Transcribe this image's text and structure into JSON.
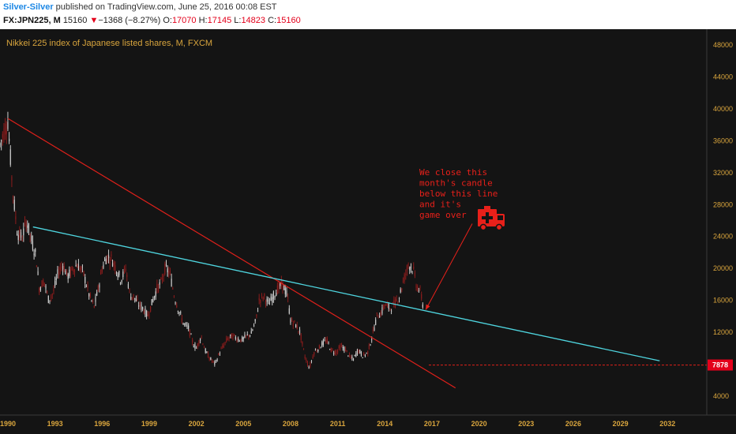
{
  "header": {
    "author": "Silver-Silver",
    "published": " published on TradingView.com, June 25, 2016 00:08 EST",
    "symbol": "FX:JPN225, M",
    "last": "15160",
    "change": "−1368 (−8.27%)",
    "o_label": "O:",
    "o_value": "17070",
    "h_label": "H:",
    "h_value": "17145",
    "l_label": "L:",
    "l_value": "14823",
    "c_label": "C:",
    "c_value": "15160",
    "down_arrow": "▼"
  },
  "colors": {
    "background": "#141414",
    "up": "#cfcfcf",
    "down": "#8a1c1c",
    "red_trendline": "#e0201a",
    "cyan_trendline": "#4fd6e0",
    "axis_text": "#d9a53d",
    "annotation": "#e8201a"
  },
  "chart_data": {
    "type": "candlestick",
    "title": "Nikkei 225 index of Japanese listed shares, M, FXCM",
    "x_ticks": [
      "1990",
      "1993",
      "1996",
      "1999",
      "2002",
      "2005",
      "2008",
      "2011",
      "2014",
      "2017",
      "2020",
      "2023",
      "2026",
      "2029",
      "2032"
    ],
    "y_ticks": [
      4000,
      8000,
      12000,
      16000,
      20000,
      24000,
      28000,
      32000,
      36000,
      40000,
      44000,
      48000
    ],
    "xlim": [
      1989.5,
      2034.5
    ],
    "ylim": [
      1600,
      50000
    ],
    "grid": false,
    "series": [
      {
        "kind": "monthly-close",
        "x": [
          1989.5,
          1989.8,
          1990.0,
          1990.3,
          1990.6,
          1990.9,
          1991.2,
          1991.5,
          1991.8,
          1992.0,
          1992.3,
          1992.6,
          1992.9,
          1993.2,
          1993.5,
          1993.8,
          1994.0,
          1994.4,
          1994.8,
          1995.2,
          1995.5,
          1995.8,
          1996.0,
          1996.3,
          1996.6,
          1996.9,
          1997.2,
          1997.5,
          1997.8,
          1998.0,
          1998.3,
          1998.6,
          1998.9,
          1999.2,
          1999.5,
          1999.8,
          2000.0,
          2000.3,
          2000.6,
          2000.9,
          2001.2,
          2001.5,
          2001.8,
          2002.0,
          2002.3,
          2002.6,
          2002.9,
          2003.2,
          2003.5,
          2003.8,
          2004.0,
          2004.3,
          2004.6,
          2004.9,
          2005.2,
          2005.5,
          2005.8,
          2006.0,
          2006.3,
          2006.6,
          2006.9,
          2007.2,
          2007.5,
          2007.8,
          2008.0,
          2008.3,
          2008.6,
          2008.9,
          2009.2,
          2009.5,
          2009.8,
          2010.0,
          2010.3,
          2010.6,
          2010.9,
          2011.2,
          2011.5,
          2011.8,
          2012.0,
          2012.3,
          2012.6,
          2012.9,
          2013.2,
          2013.5,
          2013.8,
          2014.0,
          2014.3,
          2014.6,
          2014.9,
          2015.2,
          2015.5,
          2015.8,
          2016.0,
          2016.3,
          2016.45
        ],
        "close": [
          35500,
          37500,
          38500,
          30000,
          24500,
          23800,
          26000,
          23500,
          21500,
          17500,
          18500,
          16000,
          17000,
          19500,
          20500,
          19000,
          19500,
          20500,
          19500,
          16500,
          15200,
          17800,
          20000,
          21500,
          21200,
          20000,
          18500,
          20000,
          16500,
          16500,
          15500,
          15000,
          14000,
          15800,
          17500,
          18300,
          20000,
          19500,
          16500,
          14600,
          13000,
          12500,
          10500,
          10000,
          11500,
          9500,
          8600,
          8000,
          9500,
          10500,
          11200,
          11500,
          11200,
          11000,
          11500,
          11800,
          13500,
          16000,
          16500,
          15500,
          16500,
          17500,
          18000,
          16500,
          13500,
          13000,
          12000,
          9000,
          7500,
          9500,
          10000,
          10500,
          11000,
          9700,
          9500,
          10200,
          9800,
          8800,
          8600,
          9800,
          9000,
          9400,
          11500,
          14000,
          14500,
          15500,
          15000,
          15500,
          16400,
          18500,
          20500,
          20000,
          18000,
          16800,
          15160
        ]
      },
      {
        "kind": "trendline",
        "name": "",
        "x": [
          1990.0,
          2018.5
        ],
        "y": [
          38800,
          5000
        ]
      },
      {
        "kind": "trendline",
        "name": "",
        "x": [
          1991.6,
          2031.5
        ],
        "y": [
          25200,
          8400
        ]
      },
      {
        "kind": "horizontal-level",
        "name": "",
        "x": [
          2016.8,
          2034.5
        ],
        "y": 7878
      }
    ],
    "price_label": "7878",
    "annotations": [
      {
        "text_lines": [
          "We close this",
          "month's candle",
          "below this line",
          "and it's",
          "game over"
        ],
        "arrow_to": [
          2016.6,
          14800
        ],
        "icon": "ambulance-icon"
      }
    ]
  }
}
